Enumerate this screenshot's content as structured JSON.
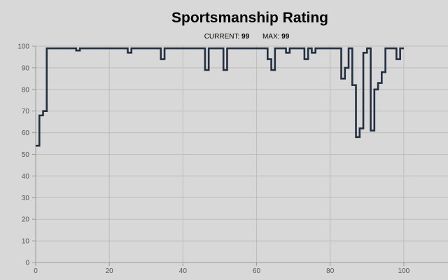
{
  "title": "Sportsmanship Rating",
  "stats": {
    "current_label": "CURRENT:",
    "current_value": "99",
    "max_label": "MAX:",
    "max_value": "99"
  },
  "colors": {
    "background": "#d8d8d8",
    "grid": "#bdbdbd",
    "axis": "#9a9a9a",
    "line": "#233041"
  },
  "chart_data": {
    "type": "line",
    "step": true,
    "title": "Sportsmanship Rating",
    "xlabel": "",
    "ylabel": "",
    "xlim": [
      0,
      112
    ],
    "ylim": [
      0,
      100
    ],
    "x_ticks": [
      0,
      20,
      40,
      60,
      80,
      100
    ],
    "y_ticks": [
      0,
      10,
      20,
      30,
      40,
      50,
      60,
      70,
      80,
      90,
      100
    ],
    "grid": true,
    "series": [
      {
        "name": "",
        "color": "#233041",
        "x": [
          0,
          1,
          2,
          3,
          11,
          12,
          25,
          26,
          34,
          35,
          46,
          47,
          51,
          52,
          63,
          64,
          65,
          66,
          68,
          69,
          73,
          74,
          75,
          76,
          82,
          83,
          84,
          85,
          86,
          87,
          88,
          89,
          90,
          91,
          92,
          93,
          94,
          95,
          98,
          99,
          100
        ],
        "y": [
          54,
          68,
          70,
          99,
          98,
          99,
          97,
          99,
          94,
          99,
          89,
          99,
          89,
          99,
          94,
          89,
          99,
          99,
          97,
          99,
          94,
          99,
          97,
          99,
          99,
          85,
          90,
          99,
          82,
          58,
          62,
          97,
          99,
          61,
          80,
          83,
          88,
          99,
          94,
          99,
          99
        ]
      }
    ]
  }
}
